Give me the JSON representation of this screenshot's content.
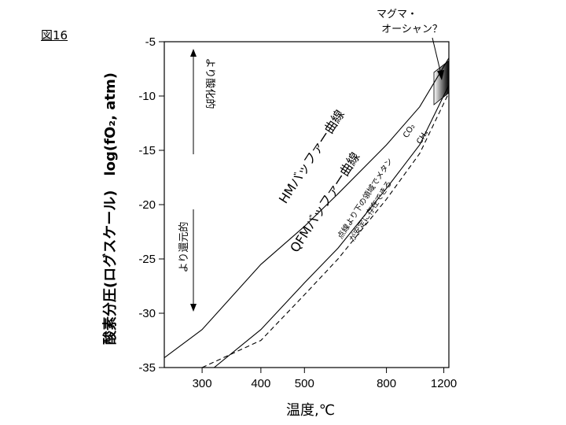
{
  "figure_label": "図16",
  "chart_data": {
    "type": "line",
    "xlabel": "温度,℃",
    "ylabel": "酸素分圧(ログスケール)　log(fO₂, atm)",
    "x_scale": "reciprocal (1/T)",
    "x_ticks": [
      300,
      400,
      500,
      800,
      1200
    ],
    "y_ticks": [
      -5,
      -10,
      -15,
      -20,
      -25,
      -30,
      -35
    ],
    "ylim": [
      -35,
      -5
    ],
    "xlim": [
      250,
      1250
    ],
    "series": [
      {
        "name": "HMバッファー曲線",
        "style": "solid",
        "x": [
          250,
          300,
          400,
          500,
          600,
          800,
          1000,
          1250
        ],
        "y": [
          -34.1,
          -31.5,
          -25.5,
          -22.0,
          -19.0,
          -14.5,
          -11.0,
          -6.5
        ]
      },
      {
        "name": "QFMバッファー曲線",
        "style": "solid",
        "x": [
          318,
          400,
          500,
          600,
          800,
          1000,
          1250
        ],
        "y": [
          -35.0,
          -31.5,
          -27.2,
          -24.0,
          -18.5,
          -14.5,
          -9.0
        ]
      },
      {
        "name": "CO₂ / CH₄",
        "style": "dashed",
        "x": [
          300,
          400,
          500,
          600,
          800,
          1000,
          1250
        ],
        "y": [
          -35.0,
          -32.5,
          -28.3,
          -25.0,
          -19.5,
          -15.3,
          -9.7
        ]
      }
    ],
    "grid": false,
    "legend": "none"
  },
  "labels": {
    "hm": "HMバッファー曲線",
    "qfm": "QFMバッファー曲線",
    "co2": "CO₂",
    "ch4": "CH₄",
    "methane_note_1": "点線より下の領域でメタン",
    "methane_note_2": "が安定に存在できる",
    "oxidizing": "より酸化的",
    "reducing": "より還元的",
    "magma_1": "マグマ・",
    "magma_2": "オーシャン？"
  }
}
